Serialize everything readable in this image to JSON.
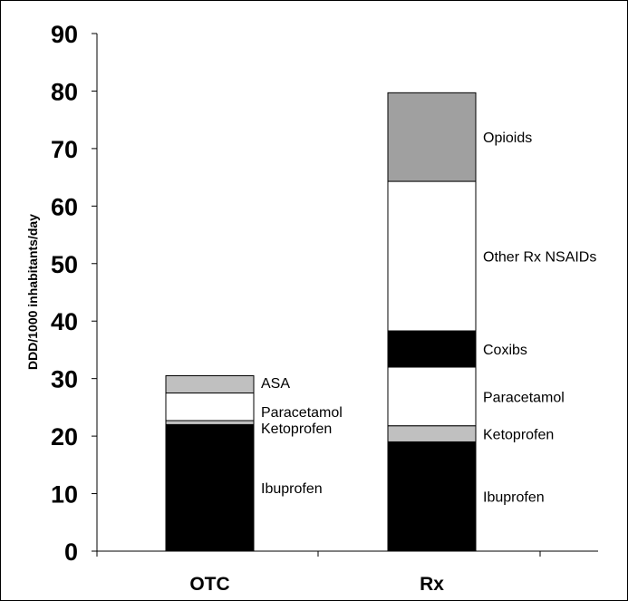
{
  "chart_data": {
    "type": "bar",
    "stacked": true,
    "ylabel": "DDD/1000 inhabitants/day",
    "ylim": [
      0,
      90
    ],
    "yticks": [
      "0",
      "10",
      "20",
      "30",
      "40",
      "50",
      "60",
      "70",
      "80",
      "90"
    ],
    "grid": false,
    "legend": "none",
    "categories": [
      "OTC",
      "Rx"
    ],
    "stacks": [
      {
        "category": "OTC",
        "segments": [
          {
            "name": "Ibuprofen",
            "value": 22.0,
            "color": "#000000"
          },
          {
            "name": "Ketoprofen",
            "value": 0.7,
            "color": "#c0c0c0"
          },
          {
            "name": "Paracetamol",
            "value": 4.8,
            "color": "#ffffff"
          },
          {
            "name": "ASA",
            "value": 3.0,
            "color": "#c0c0c0"
          }
        ]
      },
      {
        "category": "Rx",
        "segments": [
          {
            "name": "Ibuprofen",
            "value": 19.0,
            "color": "#000000"
          },
          {
            "name": "Ketoprofen",
            "value": 2.8,
            "color": "#c0c0c0"
          },
          {
            "name": "Paracetamol",
            "value": 10.2,
            "color": "#ffffff"
          },
          {
            "name": "Coxibs",
            "value": 6.3,
            "color": "#000000"
          },
          {
            "name": "Other Rx NSAIDs",
            "value": 26.0,
            "color": "#ffffff"
          },
          {
            "name": "Opioids",
            "value": 15.4,
            "color": "#a0a0a0"
          }
        ]
      }
    ]
  }
}
